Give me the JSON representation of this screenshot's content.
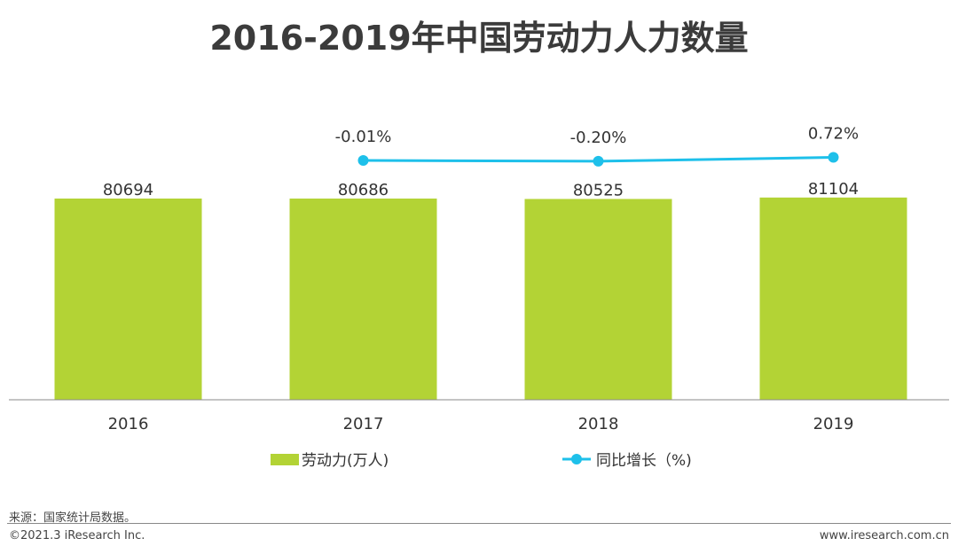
{
  "title": "2016-2019年中国劳动力人力数量",
  "footer": {
    "source": "来源：国家统计局数据。",
    "copyright": "©2021.3 iResearch Inc.",
    "website": "www.iresearch.com.cn"
  },
  "colors": {
    "bar": "#b3d335",
    "line": "#1ec0ea",
    "text": "#333333"
  },
  "chart_data": {
    "type": "bar",
    "categories": [
      "2016",
      "2017",
      "2018",
      "2019"
    ],
    "series": [
      {
        "name": "劳动力(万人)",
        "kind": "bar",
        "values": [
          80694,
          80686,
          80525,
          81104
        ],
        "labels": [
          "80694",
          "80686",
          "80525",
          "81104"
        ]
      },
      {
        "name": "同比增长（%)",
        "kind": "line",
        "values": [
          null,
          -0.01,
          -0.2,
          0.72
        ],
        "labels": [
          "",
          "-0.01%",
          "-0.20%",
          "0.72%"
        ]
      }
    ],
    "legend": [
      "劳动力(万人)",
      "同比增长（%)"
    ],
    "legend_position": "bottom"
  }
}
